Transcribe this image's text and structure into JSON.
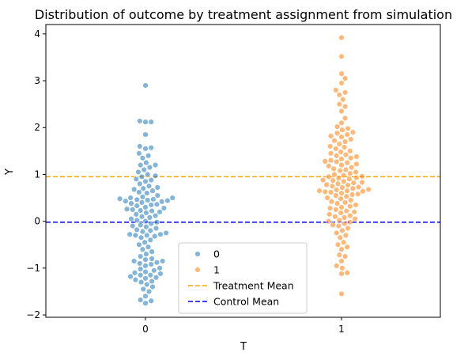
{
  "chart_data": {
    "type": "scatter",
    "title": "Distribution of outcome by treatment assignment from simulation",
    "xlabel": "T",
    "ylabel": "Y",
    "categories": [
      "0",
      "1"
    ],
    "ylim": [
      -2.05,
      4.2
    ],
    "yticks": [
      -2,
      -1,
      0,
      1,
      2,
      3,
      4
    ],
    "grid": false,
    "series": [
      {
        "name": "0",
        "color": "#1f77b4",
        "values": [
          2.9,
          2.14,
          2.12,
          2.12,
          1.85,
          1.6,
          1.57,
          1.55,
          1.45,
          1.4,
          1.35,
          1.25,
          1.2,
          1.2,
          1.15,
          1.1,
          1.05,
          1.0,
          0.97,
          0.95,
          0.9,
          0.88,
          0.85,
          0.8,
          0.75,
          0.72,
          0.7,
          0.68,
          0.65,
          0.62,
          0.6,
          0.55,
          0.52,
          0.5,
          0.5,
          0.48,
          0.47,
          0.46,
          0.45,
          0.44,
          0.43,
          0.42,
          0.4,
          0.38,
          0.36,
          0.35,
          0.33,
          0.3,
          0.28,
          0.26,
          0.25,
          0.23,
          0.22,
          0.2,
          0.18,
          0.15,
          0.12,
          0.1,
          0.08,
          0.05,
          0.02,
          0.0,
          -0.02,
          -0.05,
          -0.08,
          -0.1,
          -0.12,
          -0.15,
          -0.18,
          -0.2,
          -0.22,
          -0.25,
          -0.28,
          -0.28,
          -0.3,
          -0.3,
          -0.32,
          -0.35,
          -0.4,
          -0.45,
          -0.5,
          -0.55,
          -0.6,
          -0.65,
          -0.7,
          -0.75,
          -0.8,
          -0.82,
          -0.85,
          -0.85,
          -0.88,
          -0.9,
          -0.92,
          -0.95,
          -1.0,
          -1.02,
          -1.05,
          -1.08,
          -1.1,
          -1.12,
          -1.15,
          -1.15,
          -1.18,
          -1.2,
          -1.22,
          -1.25,
          -1.28,
          -1.3,
          -1.35,
          -1.4,
          -1.45,
          -1.5,
          -1.6,
          -1.68,
          -1.7,
          -1.75
        ],
        "marker": "circle"
      },
      {
        "name": "1",
        "color": "#ff7f0e",
        "values": [
          3.92,
          3.52,
          3.15,
          3.05,
          2.95,
          2.8,
          2.75,
          2.7,
          2.6,
          2.5,
          2.45,
          2.35,
          2.2,
          2.1,
          2.02,
          1.98,
          1.95,
          1.9,
          1.88,
          1.85,
          1.82,
          1.8,
          1.75,
          1.72,
          1.7,
          1.65,
          1.6,
          1.58,
          1.55,
          1.5,
          1.48,
          1.45,
          1.42,
          1.4,
          1.38,
          1.35,
          1.33,
          1.3,
          1.28,
          1.27,
          1.25,
          1.22,
          1.2,
          1.18,
          1.15,
          1.12,
          1.1,
          1.08,
          1.05,
          1.02,
          1.0,
          0.98,
          0.96,
          0.95,
          0.93,
          0.92,
          0.9,
          0.88,
          0.87,
          0.85,
          0.83,
          0.82,
          0.8,
          0.78,
          0.77,
          0.75,
          0.73,
          0.72,
          0.7,
          0.68,
          0.67,
          0.65,
          0.65,
          0.64,
          0.63,
          0.62,
          0.6,
          0.58,
          0.57,
          0.55,
          0.53,
          0.5,
          0.48,
          0.45,
          0.42,
          0.4,
          0.38,
          0.35,
          0.32,
          0.3,
          0.28,
          0.25,
          0.22,
          0.2,
          0.18,
          0.15,
          0.12,
          0.1,
          0.08,
          0.05,
          0.02,
          0.0,
          -0.02,
          -0.05,
          -0.08,
          -0.1,
          -0.15,
          -0.2,
          -0.25,
          -0.3,
          -0.35,
          -0.45,
          -0.5,
          -0.55,
          -0.6,
          -0.72,
          -0.75,
          -0.85,
          -0.95,
          -1.0,
          -1.1,
          -1.12,
          -1.55
        ],
        "marker": "circle"
      }
    ],
    "reference_lines": [
      {
        "name": "Treatment Mean",
        "y": 0.95,
        "color": "#ffa500",
        "style": "dashed"
      },
      {
        "name": "Control Mean",
        "y": -0.02,
        "color": "#0000ff",
        "style": "dashed"
      }
    ],
    "legend": {
      "placement": "lower-center",
      "entries": [
        "0",
        "1",
        "Treatment Mean",
        "Control Mean"
      ]
    }
  }
}
